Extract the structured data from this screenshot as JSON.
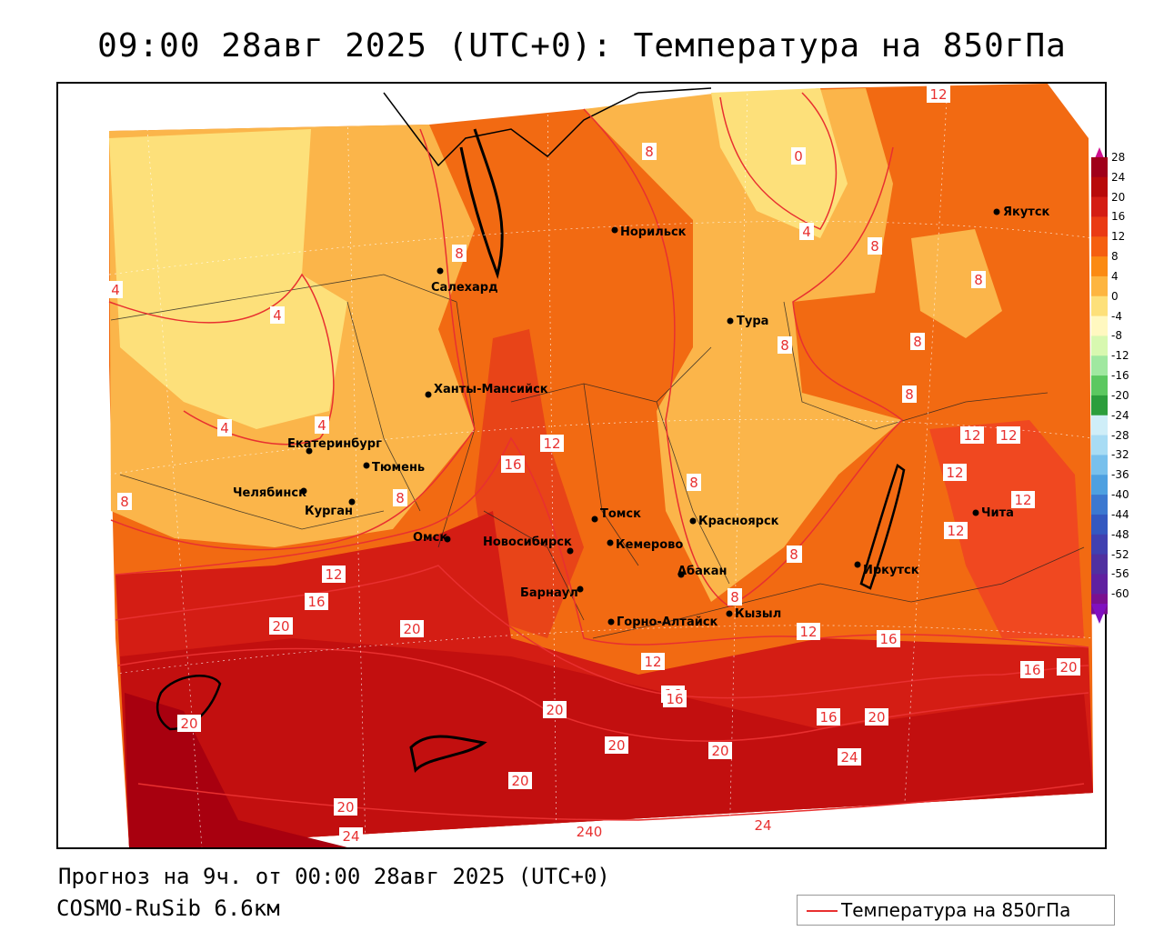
{
  "title": "09:00 28авг 2025 (UTC+0): Температура на 850гПа",
  "footer": {
    "forecast": "Прогноз на 9ч. от 00:00 28авг 2025 (UTC+0)",
    "model": "COSMO-RuSib 6.6км"
  },
  "legend": {
    "label": "Температура на 850гПа",
    "color": "#e83030"
  },
  "colorbar": {
    "labels": [
      "28",
      "24",
      "20",
      "16",
      "12",
      "8",
      "4",
      "0",
      "-4",
      "-8",
      "-12",
      "-16",
      "-20",
      "-24",
      "-28",
      "-32",
      "-36",
      "-40",
      "-44",
      "-48",
      "-52",
      "-56",
      "-60"
    ],
    "colors": [
      "#a0001a",
      "#b80a0a",
      "#d41d14",
      "#ea3a14",
      "#f55f10",
      "#fb8a12",
      "#fdb540",
      "#fde07a",
      "#fff8c0",
      "#d8f8b0",
      "#a0e8a0",
      "#5cc860",
      "#2c9e3c",
      "#cfeef8",
      "#a8dcf4",
      "#78c0ec",
      "#4ea0e0",
      "#3c78d0",
      "#3458c0",
      "#4040b0",
      "#5030a0",
      "#6020a0",
      "#7a1090"
    ]
  },
  "isotherm_labels": [
    "12",
    "0",
    "8",
    "4",
    "8",
    "8",
    "8",
    "8",
    "8",
    "8",
    "8",
    "4",
    "4",
    "4",
    "4",
    "8",
    "8",
    "12",
    "16",
    "12",
    "12",
    "12",
    "12",
    "12",
    "12",
    "8",
    "8",
    "8",
    "12",
    "16",
    "16",
    "20",
    "20",
    "16",
    "20",
    "12",
    "16",
    "16",
    "20",
    "20",
    "16",
    "20",
    "24",
    "20",
    "20",
    "20",
    "20",
    "24",
    "240",
    "24"
  ],
  "cities": [
    "Норильск",
    "Якутск",
    "Салехард",
    "Тура",
    "Ханты-Мансийск",
    "Екатеринбург",
    "Тюмень",
    "Челябинск",
    "Курган",
    "Омск",
    "Новосибирск",
    "Томск",
    "Кемерово",
    "Красноярск",
    "Барнаул",
    "Абакан",
    "Горно-Алтайск",
    "Кызыл",
    "Иркутск",
    "Чита"
  ]
}
